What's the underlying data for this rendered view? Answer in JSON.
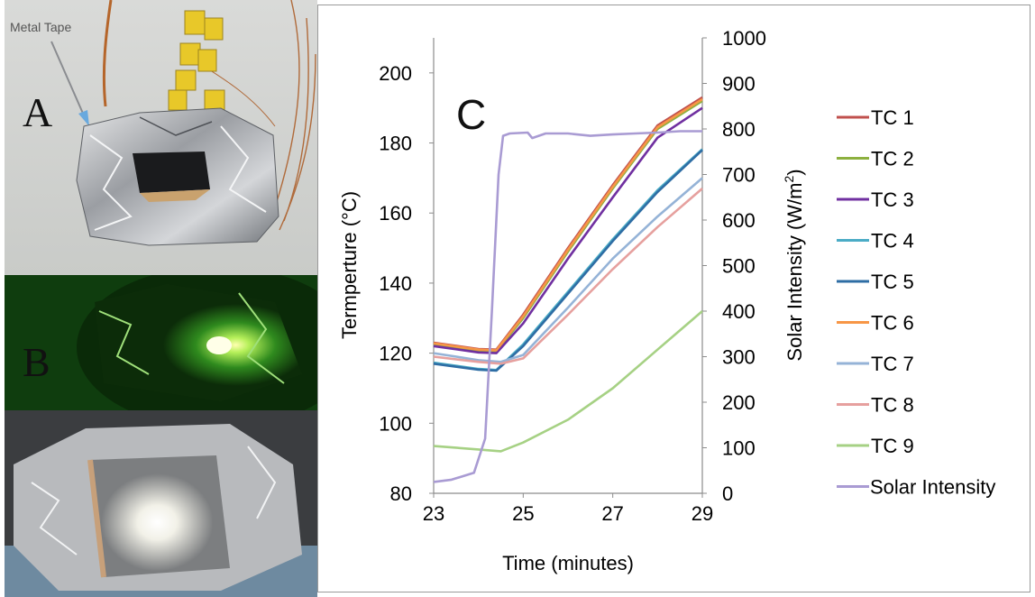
{
  "panels": {
    "a": {
      "letter": "A",
      "annotation": "Metal Tape"
    },
    "b": {
      "letter": "B"
    },
    "c": {
      "letter": "C"
    }
  },
  "chart_data": {
    "type": "line",
    "xlabel": "Time (minutes)",
    "ylabel_left": "Termperture  (°C)",
    "ylabel_right_main": "Solar  Intensity  (W/m",
    "ylabel_right_sup": "2",
    "ylabel_right_end": ")",
    "xlim": [
      23,
      29
    ],
    "ylim_left": [
      80,
      210
    ],
    "ylim_right": [
      0,
      1000
    ],
    "x_ticks": [
      23,
      25,
      27,
      29
    ],
    "y_left_ticks": [
      80,
      100,
      120,
      140,
      160,
      180,
      200
    ],
    "y_right_ticks": [
      0,
      100,
      200,
      300,
      400,
      500,
      600,
      700,
      800,
      900,
      1000
    ],
    "grid": false,
    "legend_position": "right",
    "series": [
      {
        "name": "TC 1",
        "color": "#c0504d",
        "axis": "left",
        "x": [
          23,
          24,
          24.4,
          25,
          26,
          27,
          28,
          29
        ],
        "y": [
          123,
          121.2,
          121,
          131,
          150,
          168,
          185,
          193
        ]
      },
      {
        "name": "TC 2",
        "color": "#8db03f",
        "axis": "left",
        "x": [
          23,
          24,
          24.4,
          25,
          26,
          27,
          28,
          29
        ],
        "y": [
          122.5,
          120.7,
          120.5,
          130,
          149,
          167,
          184,
          192
        ]
      },
      {
        "name": "TC 3",
        "color": "#7030a0",
        "axis": "left",
        "x": [
          23,
          24,
          24.4,
          25,
          26,
          27,
          28,
          29
        ],
        "y": [
          122,
          120.2,
          120,
          128.5,
          147,
          164.5,
          181.5,
          190
        ]
      },
      {
        "name": "TC 4",
        "color": "#4bacc6",
        "axis": "left",
        "x": [
          23,
          24,
          24.4,
          25,
          26,
          27,
          28,
          29
        ],
        "y": [
          117.3,
          115.5,
          115.2,
          122.5,
          137.5,
          152.5,
          166.5,
          178.2
        ]
      },
      {
        "name": "TC 5",
        "color": "#2e6da4",
        "axis": "left",
        "x": [
          23,
          24,
          24.4,
          25,
          26,
          27,
          28,
          29
        ],
        "y": [
          117,
          115.3,
          115,
          122,
          137,
          152,
          166,
          178
        ]
      },
      {
        "name": "TC 6",
        "color": "#f79646",
        "axis": "left",
        "x": [
          23,
          24,
          24.4,
          25,
          26,
          27,
          28,
          29
        ],
        "y": [
          122.8,
          121,
          120.8,
          130.5,
          149.5,
          167.5,
          184.5,
          192.5
        ]
      },
      {
        "name": "TC 7",
        "color": "#95b3d7",
        "axis": "left",
        "x": [
          23,
          24,
          24.5,
          25,
          26,
          27,
          28,
          29
        ],
        "y": [
          120,
          118,
          117.5,
          119.5,
          133,
          147,
          159,
          170
        ]
      },
      {
        "name": "TC 8",
        "color": "#e6a09e",
        "axis": "left",
        "x": [
          23,
          24,
          24.5,
          25,
          26,
          27,
          28,
          29
        ],
        "y": [
          119,
          117.5,
          117,
          118.5,
          131,
          144,
          156,
          167
        ]
      },
      {
        "name": "TC 9",
        "color": "#a6d184",
        "axis": "left",
        "x": [
          23,
          24,
          24.5,
          25,
          26,
          27,
          28,
          29
        ],
        "y": [
          93.5,
          92.5,
          92,
          94.5,
          101,
          110,
          121,
          132
        ]
      },
      {
        "name": "Solar Intensity",
        "color": "#a99bd3",
        "axis": "right",
        "x": [
          23,
          23.4,
          23.9,
          24.15,
          24.3,
          24.45,
          24.55,
          24.7,
          25.1,
          25.2,
          25.5,
          26,
          26.5,
          27,
          27.5,
          28,
          28.5,
          29
        ],
        "y": [
          25,
          30,
          45,
          120,
          400,
          700,
          785,
          790,
          792,
          780,
          790,
          790,
          785,
          788,
          790,
          792,
          795,
          795
        ]
      }
    ]
  }
}
